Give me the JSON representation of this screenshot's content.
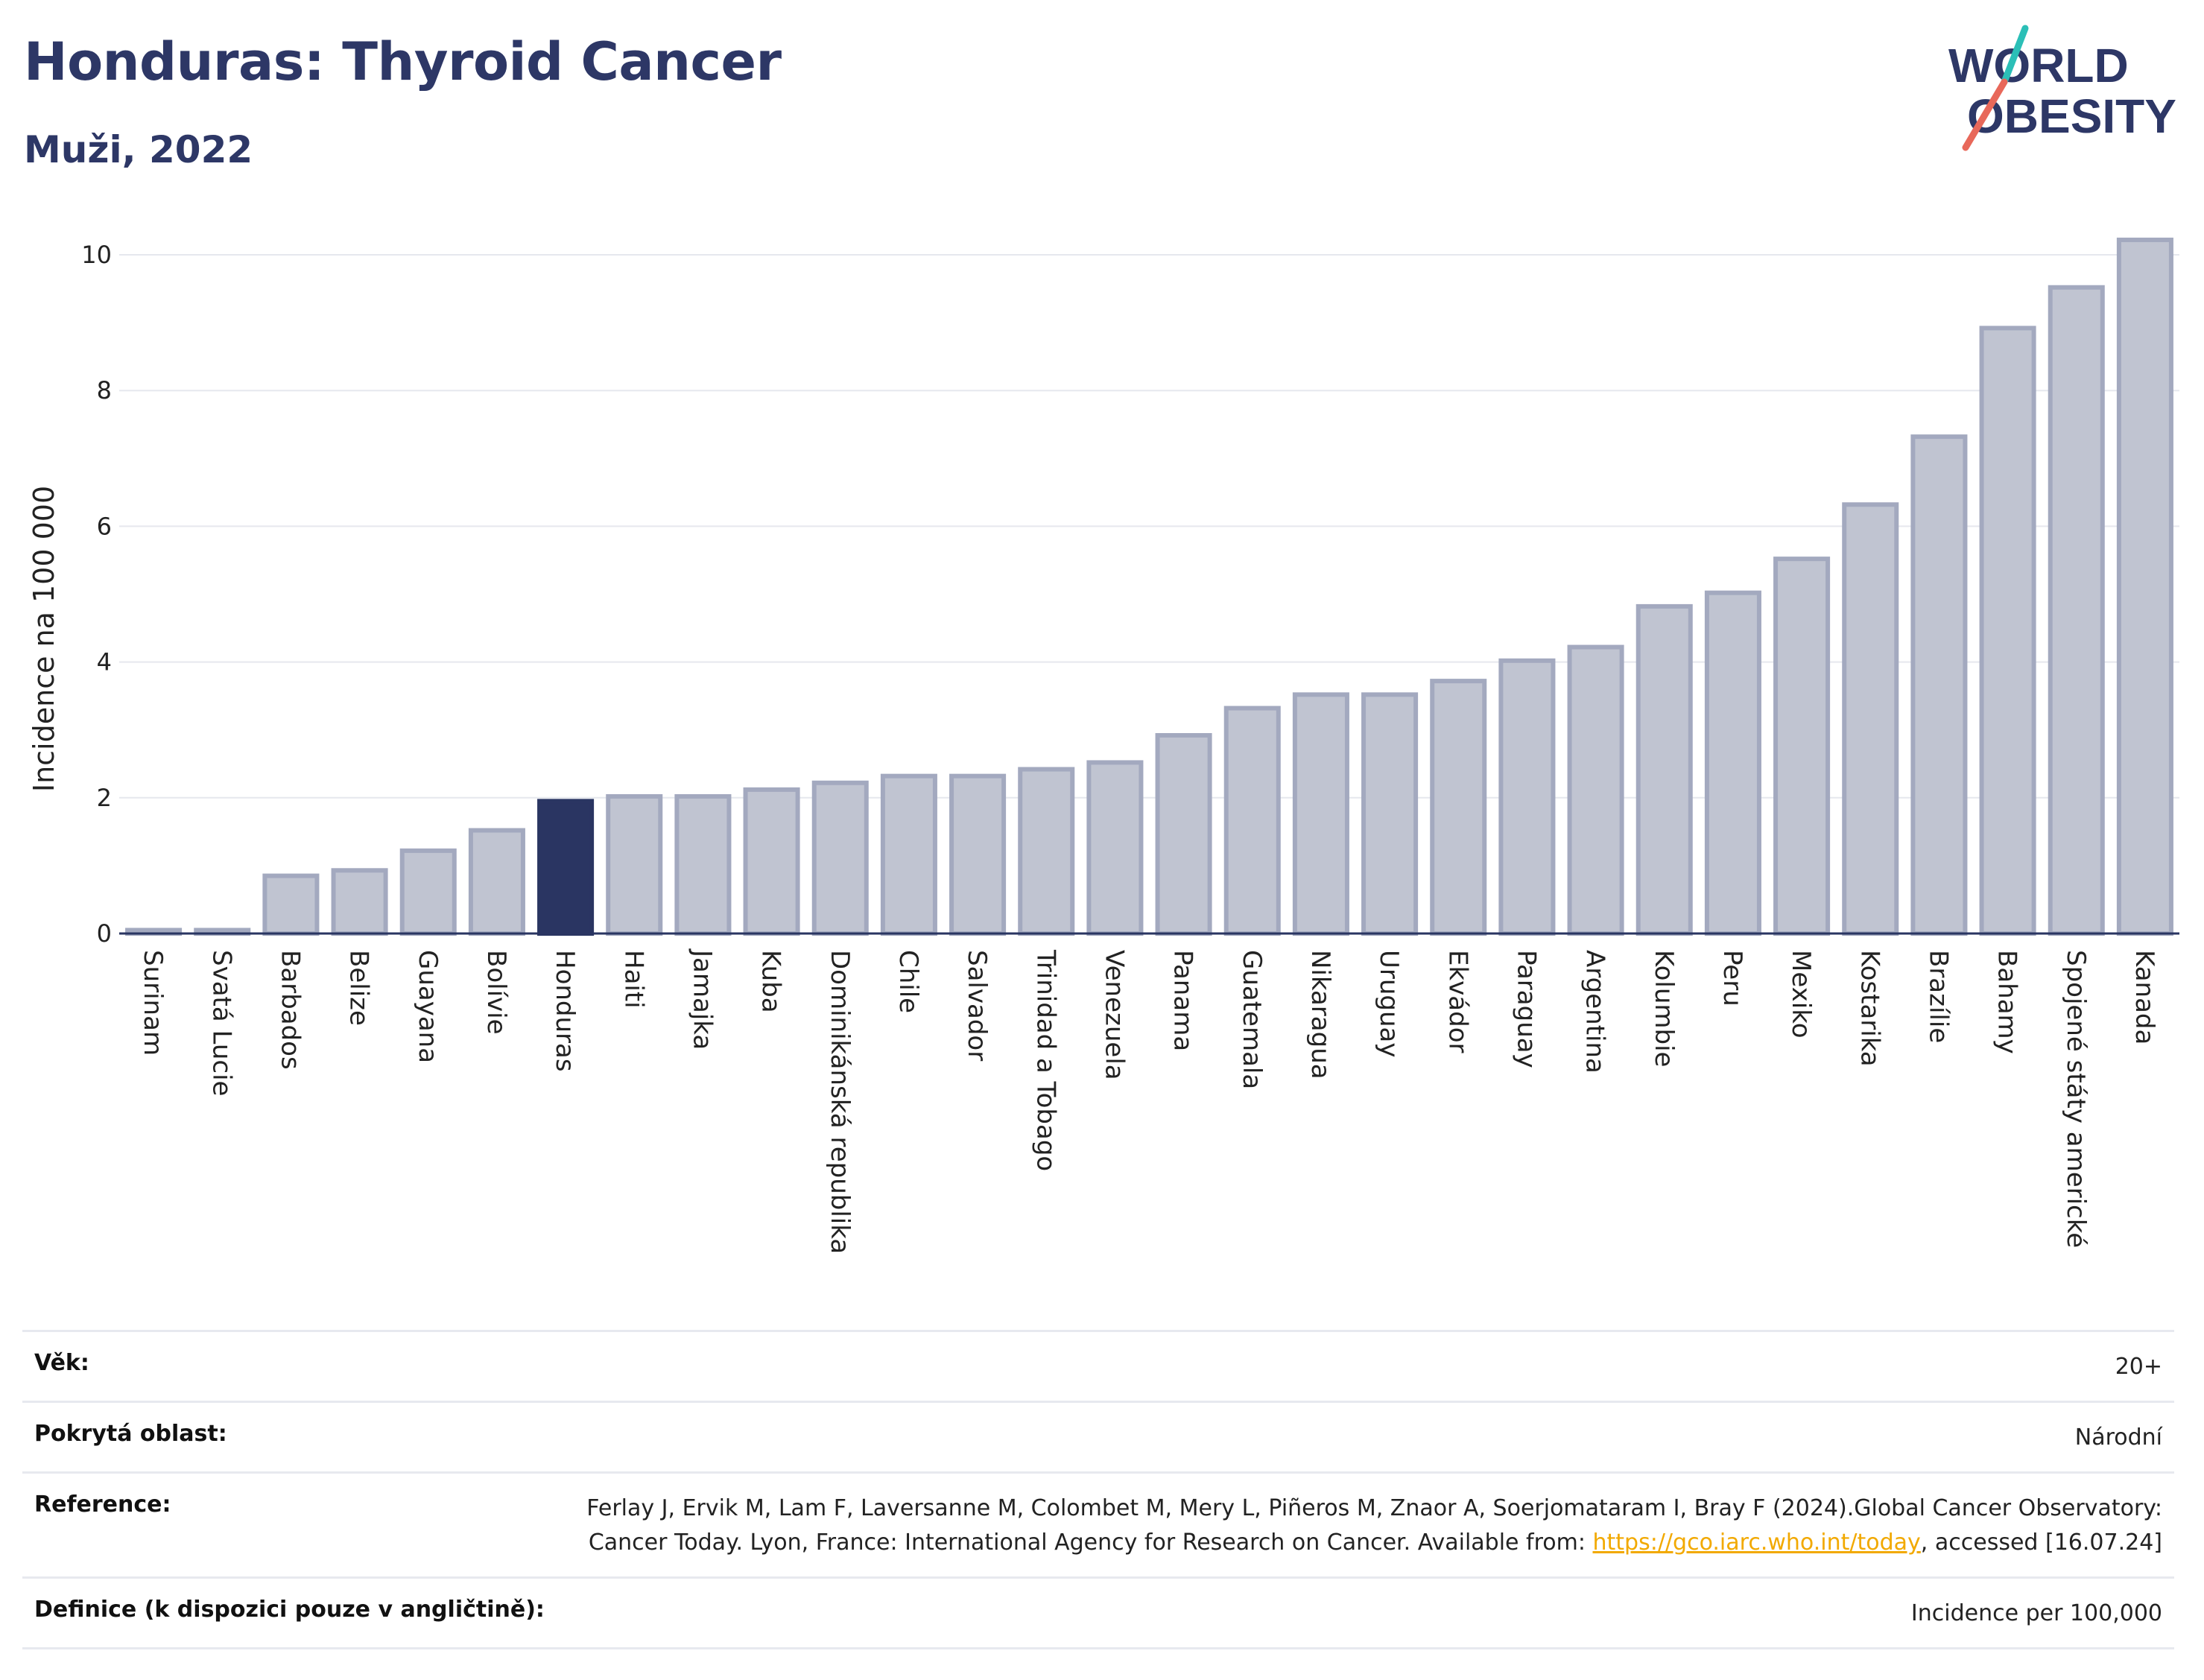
{
  "header": {
    "title": "Honduras: Thyroid Cancer",
    "subtitle": "Muži, 2022"
  },
  "logo": {
    "line1": "WORLD",
    "line2": "OBESITY",
    "colors": {
      "text": "#2d3766",
      "slash_teal": "#2bbfb7",
      "slash_coral": "#e8685a"
    }
  },
  "chart_data": {
    "type": "bar",
    "ylabel": "Incidence na 100 000",
    "ylim": [
      0,
      10.5
    ],
    "yticks": [
      0,
      2,
      4,
      6,
      8,
      10
    ],
    "grid": true,
    "highlight_category": "Honduras",
    "colors": {
      "bar": "#c0c4d1",
      "bar_edge": "#a3a9bf",
      "highlight": "#2a3562",
      "grid": "#e6e8ee",
      "axis": "#2a3562"
    },
    "categories": [
      "Surinam",
      "Svatá Lucie",
      "Barbados",
      "Belize",
      "Guayana",
      "Bolívie",
      "Honduras",
      "Haiti",
      "Jamajka",
      "Kuba",
      "Dominikánská republika",
      "Chile",
      "Salvador",
      "Trinidad a Tobago",
      "Venezuela",
      "Panama",
      "Guatemala",
      "Nikaragua",
      "Uruguay",
      "Ekvádor",
      "Paraguay",
      "Argentina",
      "Kolumbie",
      "Peru",
      "Mexiko",
      "Kostarika",
      "Brazílie",
      "Bahamy",
      "Spojené státy americké",
      "Kanada"
    ],
    "values": [
      0.05,
      0.05,
      0.85,
      0.93,
      1.22,
      1.52,
      1.95,
      2.02,
      2.02,
      2.12,
      2.22,
      2.32,
      2.32,
      2.42,
      2.52,
      2.92,
      3.32,
      3.52,
      3.52,
      3.72,
      4.02,
      4.22,
      4.82,
      5.02,
      5.52,
      6.32,
      7.32,
      8.92,
      9.52,
      10.22
    ]
  },
  "meta": {
    "rows": [
      {
        "label": "Věk:",
        "value": "20+"
      },
      {
        "label": "Pokrytá oblast:",
        "value": "Národní"
      },
      {
        "label": "Reference:",
        "value_before": "Ferlay J, Ervik M, Lam F, Laversanne M, Colombet M, Mery L, Piñeros M, Znaor A, Soerjomataram I, Bray F (2024).Global Cancer Observatory: Cancer Today. Lyon, France: International Agency for Research on Cancer. Available from: ",
        "link": "https://gco.iarc.who.int/today",
        "value_after": ", accessed [16.07.24]"
      },
      {
        "label": "Definice (k dispozici pouze v angličtině):",
        "value": "Incidence per 100,000"
      }
    ]
  }
}
